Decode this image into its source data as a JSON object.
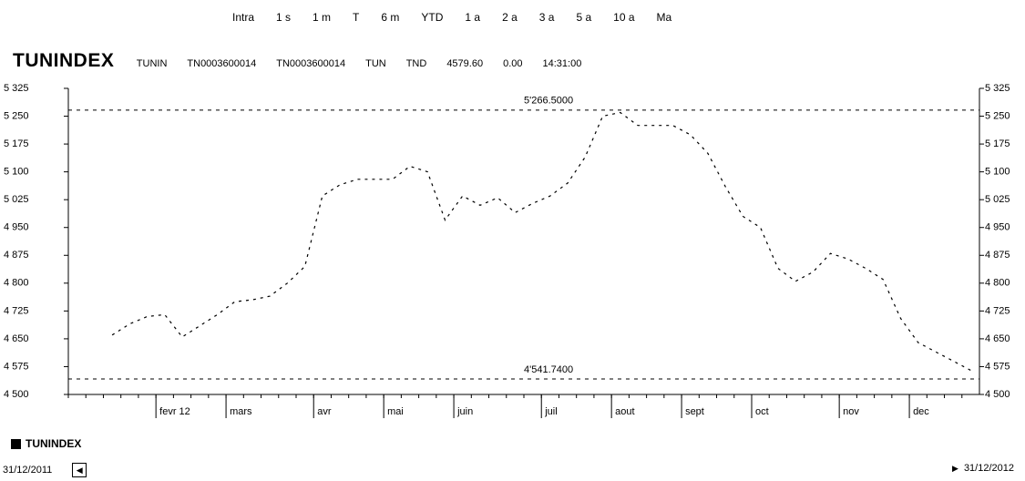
{
  "toolbar": {
    "periods": [
      "Intra",
      "1 s",
      "1 m",
      "T",
      "6 m",
      "YTD",
      "1 a",
      "2 a",
      "3 a",
      "5 a",
      "10 a",
      "Ma"
    ]
  },
  "header": {
    "name": "TUNINDEX",
    "fields": [
      "TUNIN",
      "TN0003600014",
      "TN0003600014",
      "TUN",
      "TND",
      "4579.60",
      "0.00",
      "14:31:00"
    ]
  },
  "chart_data": {
    "type": "line",
    "categories": [
      null,
      null,
      null,
      null,
      null,
      "fevr 12",
      null,
      null,
      null,
      "mars",
      null,
      null,
      null,
      null,
      "avr",
      null,
      null,
      null,
      "mai",
      null,
      null,
      null,
      "juin",
      null,
      null,
      null,
      null,
      "juil",
      null,
      null,
      null,
      "aout",
      null,
      null,
      null,
      "sept",
      null,
      null,
      null,
      "oct",
      null,
      null,
      null,
      null,
      "nov",
      null,
      null,
      null,
      "dec",
      null,
      null,
      null
    ],
    "series": [
      {
        "name": "TUNINDEX",
        "color": "#000000",
        "values": [
          null,
          null,
          4660,
          4690,
          4710,
          4715,
          4655,
          4685,
          4715,
          4750,
          4755,
          4765,
          4800,
          4845,
          5035,
          5065,
          5080,
          5080,
          5080,
          5115,
          5100,
          4970,
          5035,
          5010,
          5030,
          4990,
          5015,
          5035,
          5070,
          5140,
          5250,
          5260,
          5225,
          5225,
          5225,
          5200,
          5150,
          5060,
          4980,
          4950,
          4840,
          4805,
          4830,
          4880,
          4865,
          4840,
          4810,
          4705,
          4640,
          4615,
          4590,
          4565
        ]
      }
    ],
    "ylim": [
      4500,
      5325
    ],
    "yticks": [
      {
        "value": 4500,
        "label": "4 500"
      },
      {
        "value": 4575,
        "label": "4 575"
      },
      {
        "value": 4650,
        "label": "4 650"
      },
      {
        "value": 4725,
        "label": "4 725"
      },
      {
        "value": 4800,
        "label": "4 800"
      },
      {
        "value": 4875,
        "label": "4 875"
      },
      {
        "value": 4950,
        "label": "4 950"
      },
      {
        "value": 5025,
        "label": "5 025"
      },
      {
        "value": 5100,
        "label": "5 100"
      },
      {
        "value": 5175,
        "label": "5 175"
      },
      {
        "value": 5250,
        "label": "5 250"
      },
      {
        "value": 5325,
        "label": "5 325"
      }
    ],
    "reference_lines": [
      {
        "value": 5266.5,
        "label": "5'266.5000"
      },
      {
        "value": 4541.74,
        "label": "4'541.7400"
      }
    ],
    "grid": false,
    "legend": "bottom-left"
  },
  "footer": {
    "start_date": "31/12/2011",
    "end_date": "31/12/2012"
  }
}
